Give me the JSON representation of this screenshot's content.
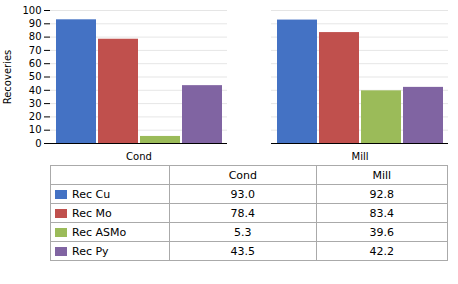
{
  "chart_data": {
    "type": "bar",
    "categories": [
      "Cond",
      "Mill"
    ],
    "series": [
      {
        "name": "Rec Cu",
        "color": "#4472C4",
        "values": [
          93.0,
          92.8
        ],
        "value_labels": [
          "93.0",
          "92.8"
        ]
      },
      {
        "name": "Rec Mo",
        "color": "#C0504D",
        "values": [
          78.4,
          83.4
        ],
        "value_labels": [
          "78.4",
          "83.4"
        ]
      },
      {
        "name": "Rec ASMo",
        "color": "#9BBB59",
        "values": [
          5.3,
          39.6
        ],
        "value_labels": [
          "5.3",
          "39.6"
        ]
      },
      {
        "name": "Rec Py",
        "color": "#8064A2",
        "values": [
          43.5,
          42.2
        ],
        "value_labels": [
          "43.5",
          "42.2"
        ]
      }
    ],
    "ylabel": "Recoveries",
    "ylim": [
      0,
      100
    ],
    "yticks": [
      0,
      10,
      20,
      30,
      40,
      50,
      60,
      70,
      80,
      90,
      100
    ],
    "grid": true,
    "legend": "bottom",
    "data_labels": true
  }
}
